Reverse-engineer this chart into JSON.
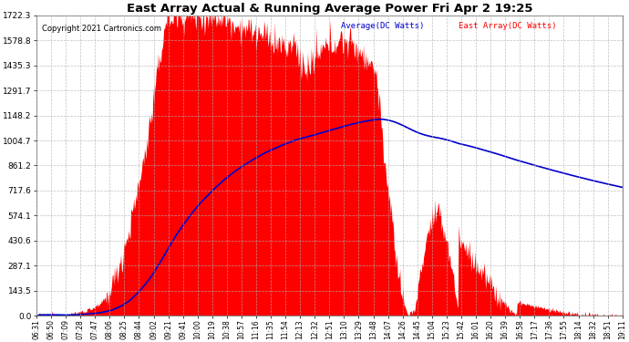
{
  "title": "East Array Actual & Running Average Power Fri Apr 2 19:25",
  "copyright": "Copyright 2021 Cartronics.com",
  "legend_avg": "Average(DC Watts)",
  "legend_east": "East Array(DC Watts)",
  "y_ticks": [
    0.0,
    143.5,
    287.1,
    430.6,
    574.1,
    717.6,
    861.2,
    1004.7,
    1148.2,
    1291.7,
    1435.3,
    1578.8,
    1722.3
  ],
  "ymax": 1722.3,
  "background_color": "#ffffff",
  "grid_color": "#b0b0b0",
  "fill_color": "#ff0000",
  "avg_line_color": "#0000cc",
  "title_color": "#000000",
  "copyright_color": "#000000",
  "x_labels": [
    "06:31",
    "06:50",
    "07:09",
    "07:28",
    "07:47",
    "08:06",
    "08:25",
    "08:44",
    "09:02",
    "09:21",
    "09:41",
    "10:00",
    "10:19",
    "10:38",
    "10:57",
    "11:16",
    "11:35",
    "11:54",
    "12:13",
    "12:32",
    "12:51",
    "13:10",
    "13:29",
    "13:48",
    "14:07",
    "14:26",
    "14:45",
    "15:04",
    "15:23",
    "15:42",
    "16:01",
    "16:20",
    "16:39",
    "16:58",
    "17:17",
    "17:36",
    "17:55",
    "18:14",
    "18:32",
    "18:51",
    "19:11"
  ],
  "n_points": 820
}
